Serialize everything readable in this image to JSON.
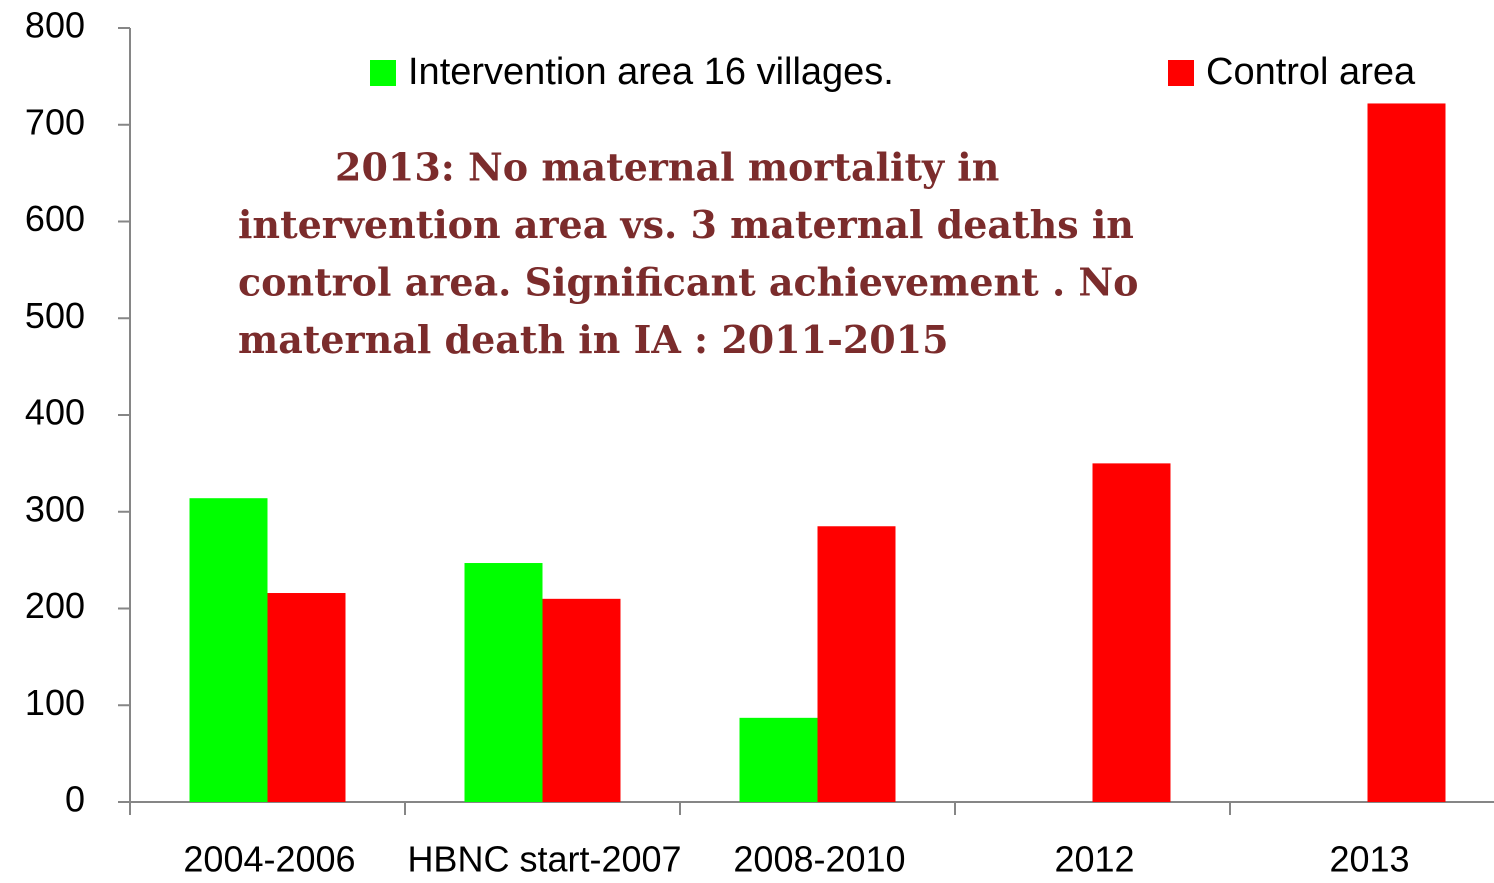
{
  "chart_data": {
    "type": "bar",
    "categories": [
      "2004-2006",
      "HBNC start-2007",
      "2008-2010",
      "2012",
      "2013"
    ],
    "series": [
      {
        "name": "Intervention area  16 villages.",
        "color": "#00ff00",
        "values": [
          314,
          247,
          87,
          0,
          0
        ]
      },
      {
        "name": "Control area",
        "color": "#ff0000",
        "values": [
          216,
          210,
          285,
          350,
          722
        ]
      }
    ],
    "annotation": [
      "2013: No maternal mortality in",
      "intervention area vs. 3 maternal deaths in",
      "control area. Significant achievement . No",
      "maternal death in IA : 2011-2015"
    ],
    "ylim": [
      0,
      800
    ],
    "yticks": [
      0,
      100,
      200,
      300,
      400,
      500,
      600,
      700,
      800
    ],
    "grid": false,
    "legend": "top"
  }
}
